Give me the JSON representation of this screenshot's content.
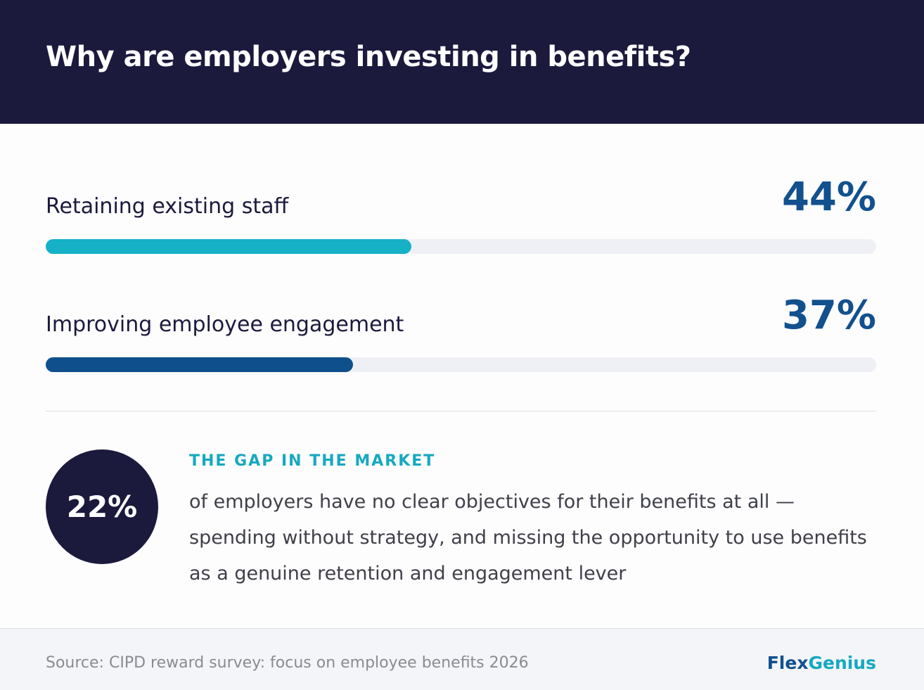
{
  "chart_data": {
    "type": "progress",
    "title": "Why are employers investing in benefits?",
    "categories": [
      "Retaining existing staff",
      "Improving employee engagement"
    ],
    "values": [
      44,
      37
    ],
    "value_labels": [
      "44%",
      "37%"
    ],
    "colors": [
      "#16b1c7",
      "#0f4f8c"
    ],
    "xlim": [
      0,
      100
    ]
  },
  "callout": {
    "value_label": "22%",
    "heading": "THE GAP IN THE MARKET",
    "text": "of employers have no clear objectives for their benefits at all — spending without strategy, and missing the opportunity to use benefits as a genuine retention and engagement lever"
  },
  "footer": {
    "source": "Source: CIPD reward survey: focus on employee benefits 2026",
    "brand_first": "Flex",
    "brand_second": "Genius"
  }
}
